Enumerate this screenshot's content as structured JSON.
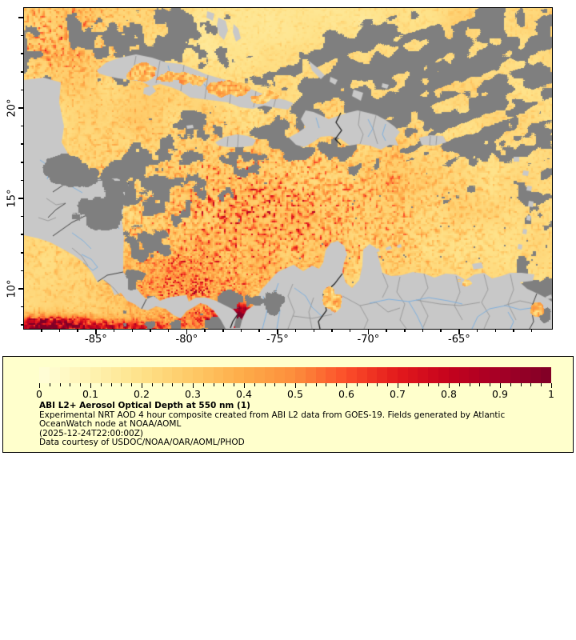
{
  "figure": {
    "type": "geographic-raster-map",
    "region": "Caribbean Sea, Gulf of Mexico and northern South America",
    "x_axis": {
      "tick_labels": [
        "-85°",
        "-80°",
        "-75°",
        "-70°",
        "-65°"
      ],
      "tick_values_deg": [
        -85,
        -80,
        -75,
        -70,
        -65
      ],
      "minor_tick_step_deg": 1,
      "lon_min": -88.96,
      "lon_max": -59.9
    },
    "y_axis": {
      "tick_labels": [
        "20°",
        "15°",
        "10°"
      ],
      "tick_values_deg": [
        20,
        15,
        10
      ],
      "minor_tick_step_deg": 1,
      "lat_min": 7.8,
      "lat_max": 25.53
    },
    "map_colors": {
      "no_data_cloud": "#7f7f7f",
      "land": "#c8c8c8",
      "river": "#7fb0dd",
      "admin_border": "#8f8f8f",
      "country_border": "#3f3f3f",
      "disputed_border": "#151515",
      "frame": "#000000"
    }
  },
  "legend": {
    "background": "#ffffcc",
    "title": "ABI L2+ Aerosol Optical Depth at 550 nm (1)",
    "lines": [
      "Experimental NRT AOD 4 hour composite created from ABI L2 data from GOES-19. Fields generated by Atlantic",
      "OceanWatch node at NOAA/AOML",
      "(2025-12-24T22:00:00Z)",
      "Data courtesy of USDOC/NOAA/OAR/AOML/PHOD"
    ],
    "colorbar": {
      "min": 0,
      "max": 1,
      "tick_labels": [
        "0",
        "0.1",
        "0.2",
        "0.3",
        "0.4",
        "0.5",
        "0.6",
        "0.7",
        "0.8",
        "0.9",
        "1"
      ],
      "minor_tick_step": 0.02,
      "segments": 50,
      "colormap": "YlOrRd",
      "gradient": [
        {
          "v": 0.0,
          "c": "#ffffd9"
        },
        {
          "v": 0.1,
          "c": "#fff3b2"
        },
        {
          "v": 0.2,
          "c": "#fee289"
        },
        {
          "v": 0.3,
          "c": "#fec966"
        },
        {
          "v": 0.4,
          "c": "#feab49"
        },
        {
          "v": 0.5,
          "c": "#fd8d3c"
        },
        {
          "v": 0.6,
          "c": "#fc4e2a"
        },
        {
          "v": 0.7,
          "c": "#e31a1c"
        },
        {
          "v": 0.8,
          "c": "#c5031e"
        },
        {
          "v": 0.9,
          "c": "#a50026"
        },
        {
          "v": 1.0,
          "c": "#800026"
        }
      ]
    }
  }
}
